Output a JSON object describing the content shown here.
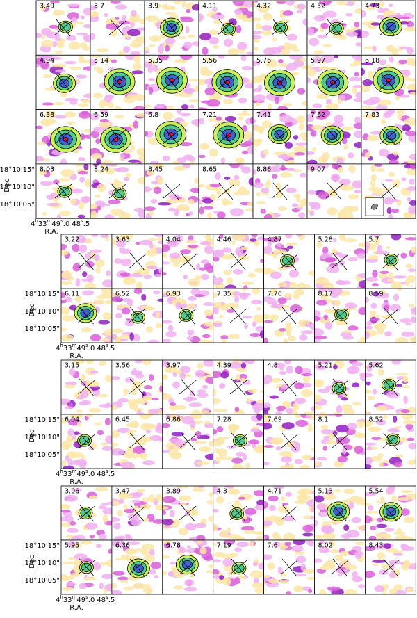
{
  "figure": {
    "groups": [
      {
        "channels": [
          "3.49",
          "3.7",
          "3.9",
          "4.11",
          "4.32",
          "4.52",
          "4.73",
          "4.94",
          "5.14",
          "5.35",
          "5.56",
          "5.76",
          "5.97",
          "6.18",
          "6.38",
          "6.59",
          "6.8",
          "7.21",
          "7.41",
          "7.62",
          "7.83",
          "8.03",
          "8.24",
          "8.45",
          "8.65",
          "8.86",
          "9.07"
        ]
      },
      {
        "channels": [
          "3.22",
          "3.63",
          "4.04",
          "4.46",
          "4.87",
          "5.28",
          "5.7",
          "6.11",
          "6.52",
          "6.93",
          "7.35",
          "7.76",
          "8.17",
          "8.59"
        ]
      },
      {
        "channels": [
          "3.15",
          "3.56",
          "3.97",
          "4.39",
          "4.8",
          "5.21",
          "5.62",
          "6.04",
          "6.45",
          "6.86",
          "7.28",
          "7.69",
          "8.1",
          "8.52"
        ]
      },
      {
        "channels": [
          "3.06",
          "3.47",
          "3.89",
          "4.3",
          "4.71",
          "5.13",
          "5.54",
          "5.95",
          "6.36",
          "6.78",
          "7.19",
          "7.6",
          "8.02",
          "8.43"
        ]
      }
    ],
    "axes": {
      "dec_label": "Dec",
      "ra_label": "R.A.",
      "dec_ticks": [
        "18°10'15\"",
        "18°10'10\"",
        "18°10'05\""
      ],
      "ra_ticks": [
        [
          "4",
          "h",
          "33",
          "m",
          "49",
          "s",
          ".0"
        ],
        [
          "48",
          "s",
          ".5"
        ]
      ]
    }
  }
}
